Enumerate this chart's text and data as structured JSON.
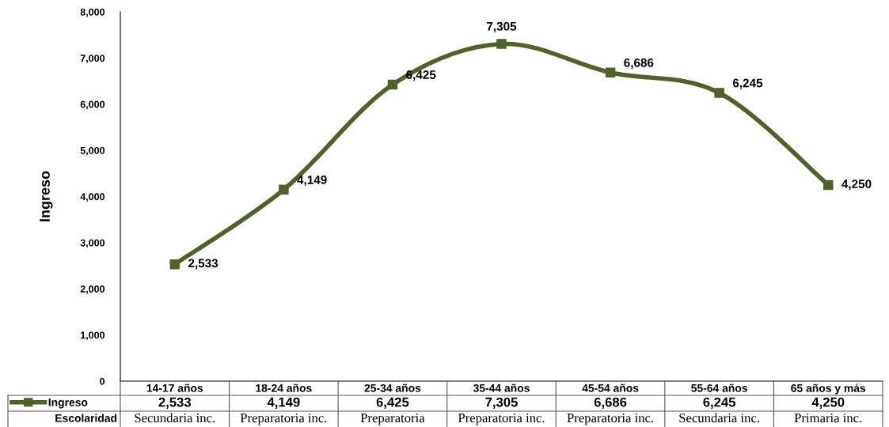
{
  "chart_data": {
    "type": "line",
    "ylabel": "Ingreso",
    "categories": [
      "14-17 años",
      "18-24 años",
      "25-34 años",
      "35-44 años",
      "45-54 años",
      "55-64 años",
      "65 años y más"
    ],
    "series": [
      {
        "name": "Ingreso",
        "color": "#4f6228",
        "values": [
          2533,
          4149,
          6425,
          7305,
          6686,
          6245,
          4250
        ],
        "value_labels": [
          "2,533",
          "4,149",
          "6,425",
          "7,305",
          "6,686",
          "6,245",
          "4,250"
        ]
      }
    ],
    "ylim": [
      0,
      8000
    ],
    "yticks": [
      0,
      {
        "value": 1000,
        "label": "1,000"
      },
      {
        "value": 2000,
        "label": "2,000"
      },
      {
        "value": 3000,
        "label": "3,000"
      },
      {
        "value": 4000,
        "label": "4,000"
      },
      {
        "value": 5000,
        "label": "5,000"
      },
      {
        "value": 6000,
        "label": "6,000"
      },
      {
        "value": 7000,
        "label": "7,000"
      },
      {
        "value": 8000,
        "label": "8,000"
      }
    ],
    "marker": "square",
    "line_style": "solid",
    "grid": false,
    "legend": "bottom",
    "annotations": [
      "Escolaridad",
      "Secundaria inc.",
      "Preparatoria inc.",
      "Preparatoria",
      "Preparatoria inc.",
      "Preparatoria inc.",
      "Secundaria inc.",
      "Primaria inc."
    ]
  }
}
